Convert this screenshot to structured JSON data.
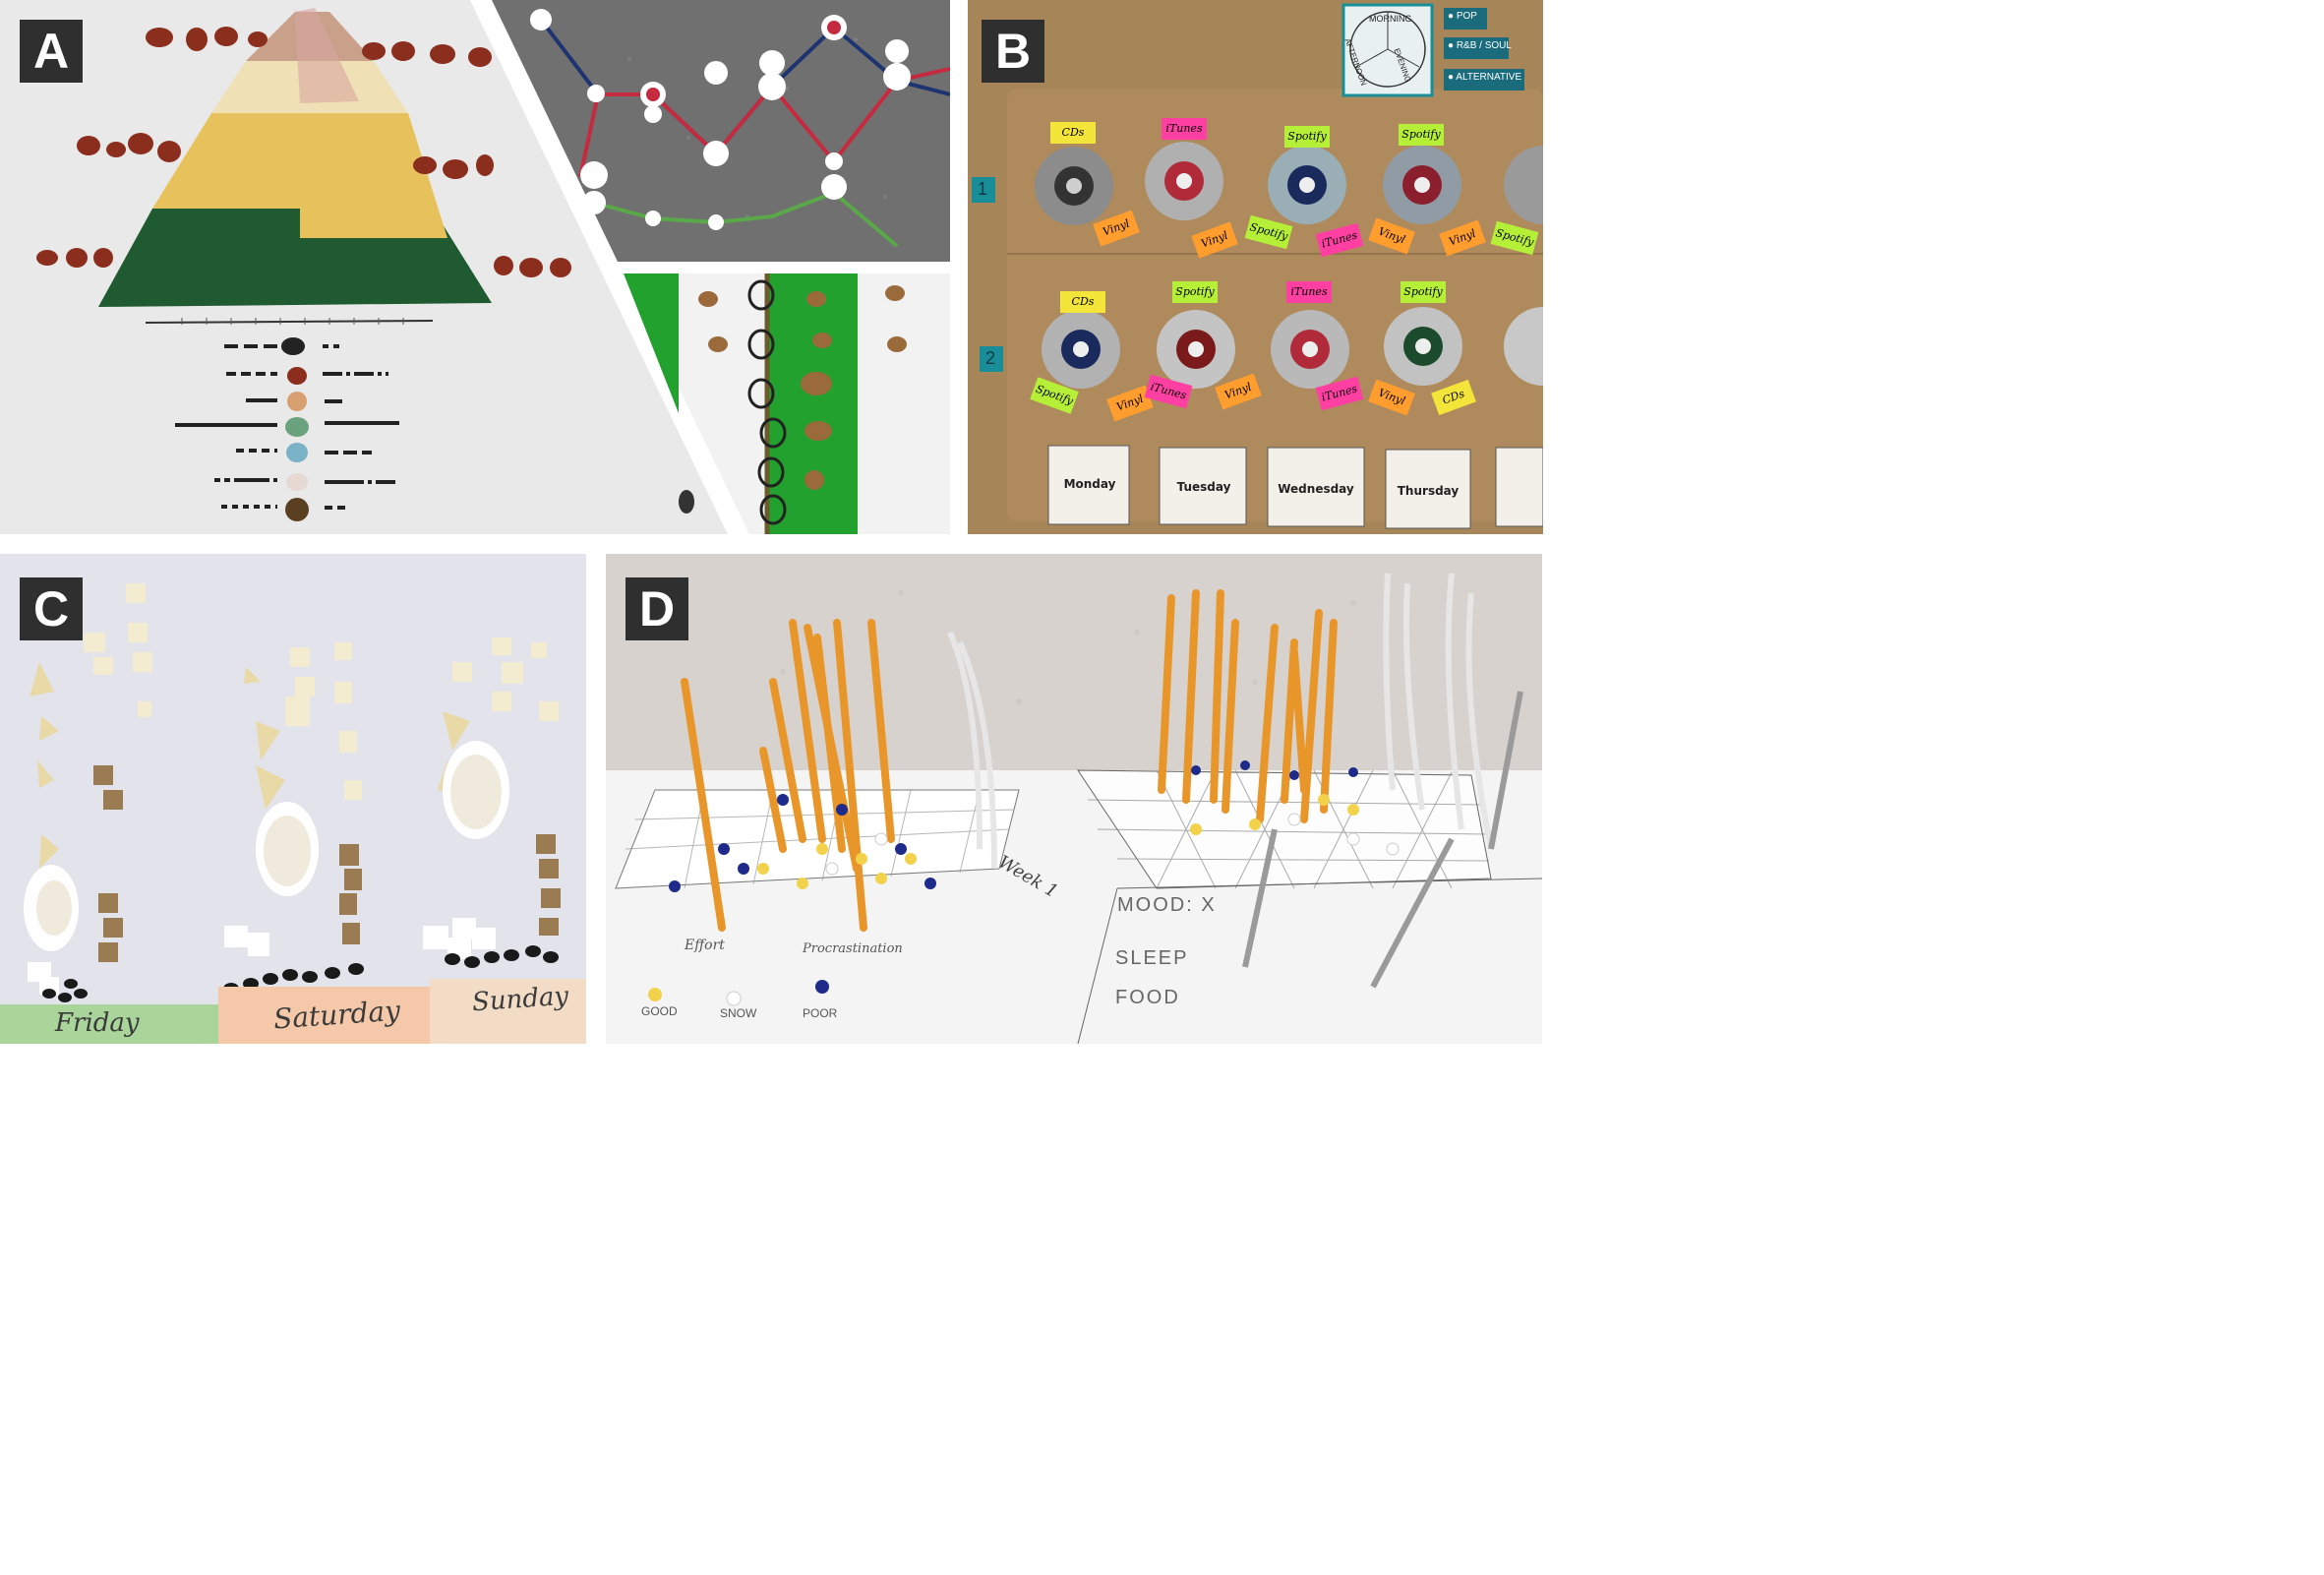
{
  "panels": {
    "a": {
      "label": "A"
    },
    "b": {
      "label": "B",
      "legend": {
        "wheel": [
          "MORNING",
          "EVENING",
          "AFTERNOON"
        ],
        "genres": [
          {
            "name": "POP",
            "color": "#1a6c7c"
          },
          {
            "name": "R&B / SOUL",
            "color": "#1a6c7c"
          },
          {
            "name": "ALTERNATIVE",
            "color": "#1a6c7c"
          }
        ]
      },
      "rows": [
        "1",
        "2"
      ],
      "row1_sources": [
        "CDs",
        "iTunes",
        "Spotify",
        "Spotify"
      ],
      "row1_tags": [
        "Vinyl",
        "Vinyl",
        "Spotify",
        "iTunes",
        "Vinyl",
        "Vinyl",
        "Spotify"
      ],
      "row2_sources": [
        "CDs",
        "Spotify",
        "iTunes",
        "Spotify"
      ],
      "row2_tags": [
        "Spotify",
        "Vinyl",
        "iTunes",
        "Vinyl",
        "iTunes",
        "Vinyl",
        "CDs"
      ],
      "days": [
        "Monday",
        "Tuesday",
        "Wednesday",
        "Thursday"
      ]
    },
    "c": {
      "label": "C",
      "days": [
        "Friday",
        "Saturday",
        "Sunday"
      ]
    },
    "d": {
      "label": "D",
      "sheet_words": [
        "Effort",
        "Procrastination",
        "Week 1"
      ],
      "legend": [
        "GOOD",
        "SNOW",
        "POOR"
      ],
      "rows": [
        "MOOD: X",
        "SLEEP",
        "FOOD"
      ]
    }
  },
  "colors": {
    "label_bg": "#2f2f2f",
    "pyramid_dark_green": "#1f5a30",
    "pyramid_yellow": "#e8c25a",
    "pin_red": "#c62a3f",
    "pin_green": "#5aa84a",
    "note_pink": "#ff3fa1",
    "note_yellow": "#f4e53a",
    "note_orange": "#ff9d2e",
    "note_lime": "#b6ef38",
    "pencil_orange": "#e8962a"
  }
}
